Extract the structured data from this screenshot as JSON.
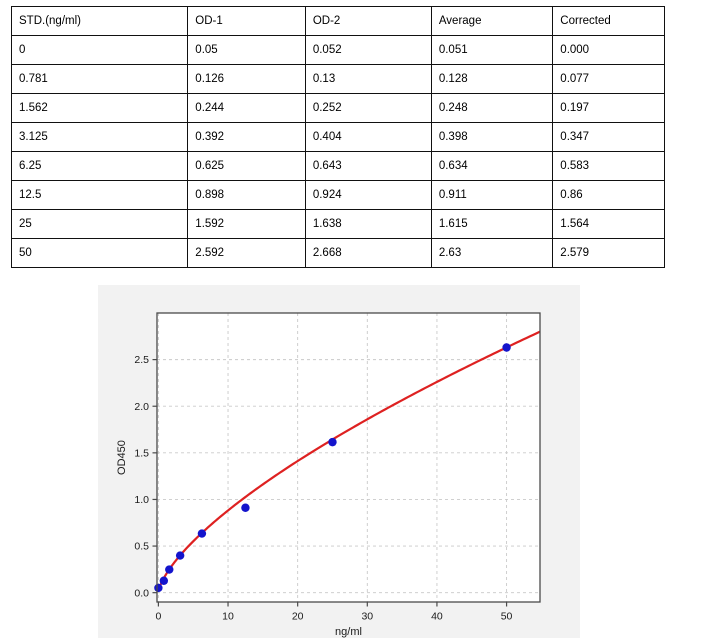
{
  "table": {
    "headers": [
      "STD.(ng/ml)",
      "OD-1",
      "OD-2",
      "Average",
      "Corrected"
    ],
    "rows": [
      [
        "0",
        "0.05",
        "0.052",
        "0.051",
        "0.000"
      ],
      [
        "0.781",
        "0.126",
        "0.13",
        "0.128",
        "0.077"
      ],
      [
        "1.562",
        "0.244",
        "0.252",
        "0.248",
        "0.197"
      ],
      [
        "3.125",
        "0.392",
        "0.404",
        "0.398",
        "0.347"
      ],
      [
        "6.25",
        "0.625",
        "0.643",
        "0.634",
        "0.583"
      ],
      [
        "12.5",
        "0.898",
        "0.924",
        "0.911",
        "0.86"
      ],
      [
        "25",
        "1.592",
        "1.638",
        "1.615",
        "1.564"
      ],
      [
        "50",
        "2.592",
        "2.668",
        "2.63",
        "2.579"
      ]
    ]
  },
  "chart_data": {
    "type": "scatter",
    "title": "",
    "xlabel": "ng/ml",
    "ylabel": "OD450",
    "x": [
      0,
      0.781,
      1.562,
      3.125,
      6.25,
      12.5,
      25,
      50
    ],
    "y": [
      0.051,
      0.128,
      0.248,
      0.398,
      0.634,
      0.911,
      1.615,
      2.63
    ],
    "fit_curve": {
      "type": "power",
      "a": 0.1847,
      "b": 0.679
    },
    "xlim": [
      -0.2,
      54.8
    ],
    "ylim": [
      -0.1,
      3.0
    ],
    "x_ticks": [
      0,
      10,
      20,
      30,
      40,
      50
    ],
    "y_ticks": [
      0.0,
      0.5,
      1.0,
      1.5,
      2.0,
      2.5
    ],
    "grid": true,
    "legend": "none",
    "colors": {
      "point": "#1414cc",
      "curve": "#de2121",
      "figure_bg": "#f2f2f2",
      "plot_bg": "#ffffff",
      "grid": "#c9c9c9",
      "spine": "#4a4a4a",
      "text": "#1a1a1a"
    }
  }
}
